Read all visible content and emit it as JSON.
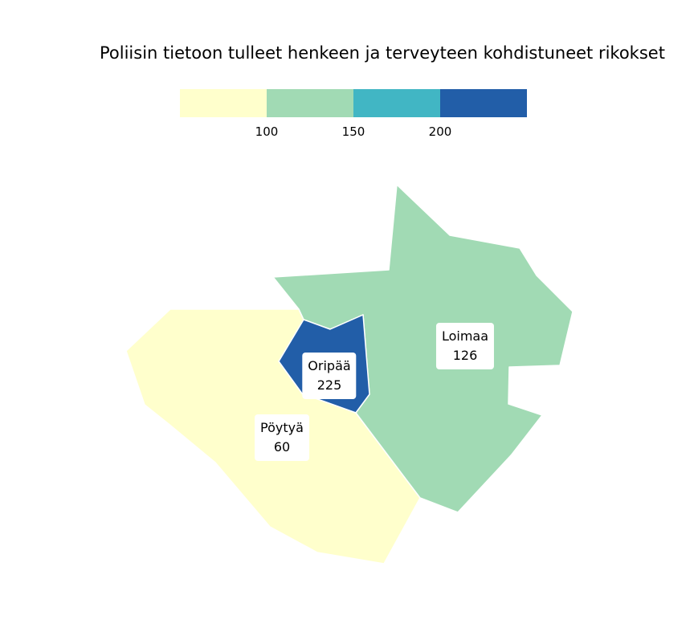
{
  "title": "Poliisin tietoon tulleet henkeen ja terveyteen kohdistuneet rikokset",
  "legend": {
    "bins": [
      {
        "color": "#ffffcc"
      },
      {
        "color": "#a1dab4"
      },
      {
        "color": "#41b6c4"
      },
      {
        "color": "#225ea8"
      }
    ],
    "ticks": [
      "100",
      "150",
      "200"
    ]
  },
  "regions": [
    {
      "name": "Pöytyä",
      "value": "60",
      "color": "#ffffcc"
    },
    {
      "name": "Loimaa",
      "value": "126",
      "color": "#a1dab4"
    },
    {
      "name": "Oripää",
      "value": "225",
      "color": "#225ea8"
    }
  ]
}
